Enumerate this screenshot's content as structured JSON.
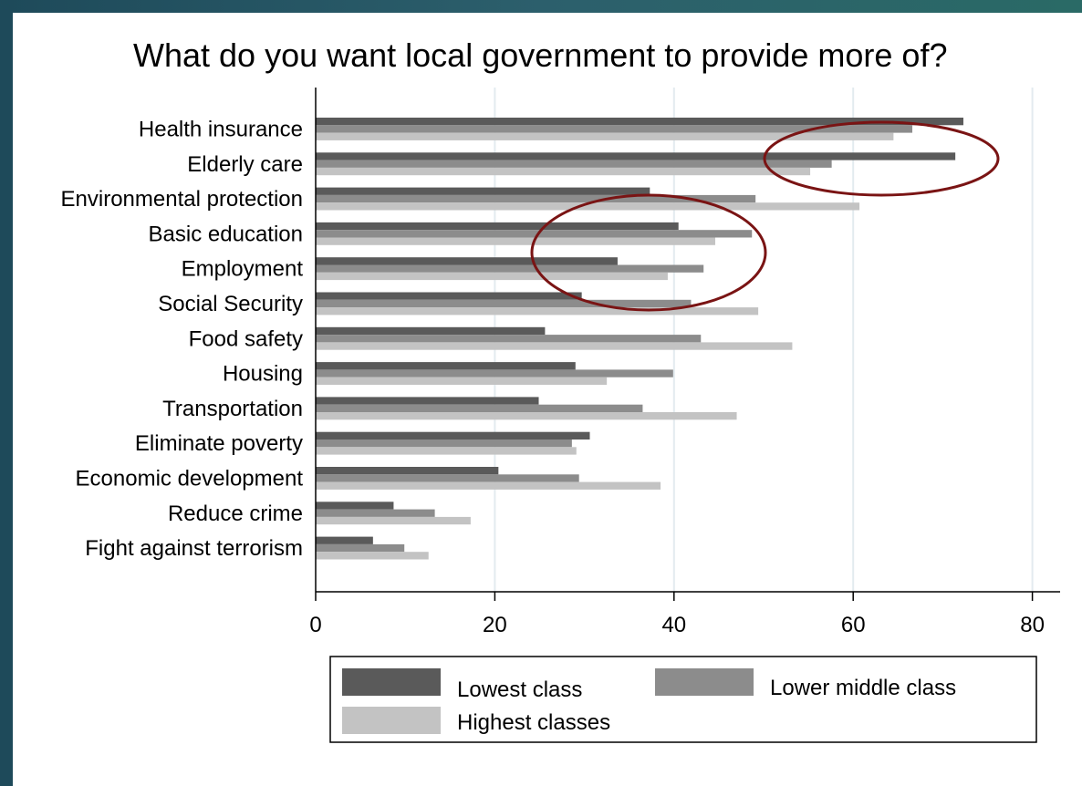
{
  "chart_data": {
    "type": "bar",
    "orientation": "horizontal",
    "title": "What do you want local government to provide more of?",
    "xlabel": "",
    "ylabel": "",
    "xlim": [
      0,
      83
    ],
    "xticks": [
      0,
      20,
      40,
      60,
      80
    ],
    "grid": true,
    "legend_placement": "bottom",
    "categories": [
      "Health insurance",
      "Elderly care",
      "Environmental protection",
      "Basic education",
      "Employment",
      "Social Security",
      "Food safety",
      "Housing",
      "Transportation",
      "Eliminate poverty",
      "Economic development",
      "Reduce crime",
      "Fight against terrorism"
    ],
    "series": [
      {
        "name": "Lowest class",
        "color": "#5a5a5a",
        "values": [
          72.3,
          71.4,
          37.3,
          40.5,
          33.7,
          29.7,
          25.6,
          29.0,
          24.9,
          30.6,
          20.4,
          8.7,
          6.4
        ]
      },
      {
        "name": "Lower middle class",
        "color": "#8c8c8c",
        "values": [
          66.6,
          57.6,
          49.1,
          48.7,
          43.3,
          41.9,
          43.0,
          39.9,
          36.5,
          28.6,
          29.4,
          13.3,
          9.9
        ]
      },
      {
        "name": "Highest classes",
        "color": "#c3c3c3",
        "values": [
          64.5,
          55.2,
          60.7,
          44.6,
          39.3,
          49.4,
          53.2,
          32.5,
          47.0,
          29.1,
          38.5,
          17.3,
          12.6
        ]
      }
    ],
    "annotations": [
      {
        "shape": "ellipse",
        "color": "#7a1414",
        "highlights": "Elderly care"
      },
      {
        "shape": "ellipse",
        "color": "#7a1414",
        "highlights": "Basic education / Employment"
      }
    ]
  }
}
